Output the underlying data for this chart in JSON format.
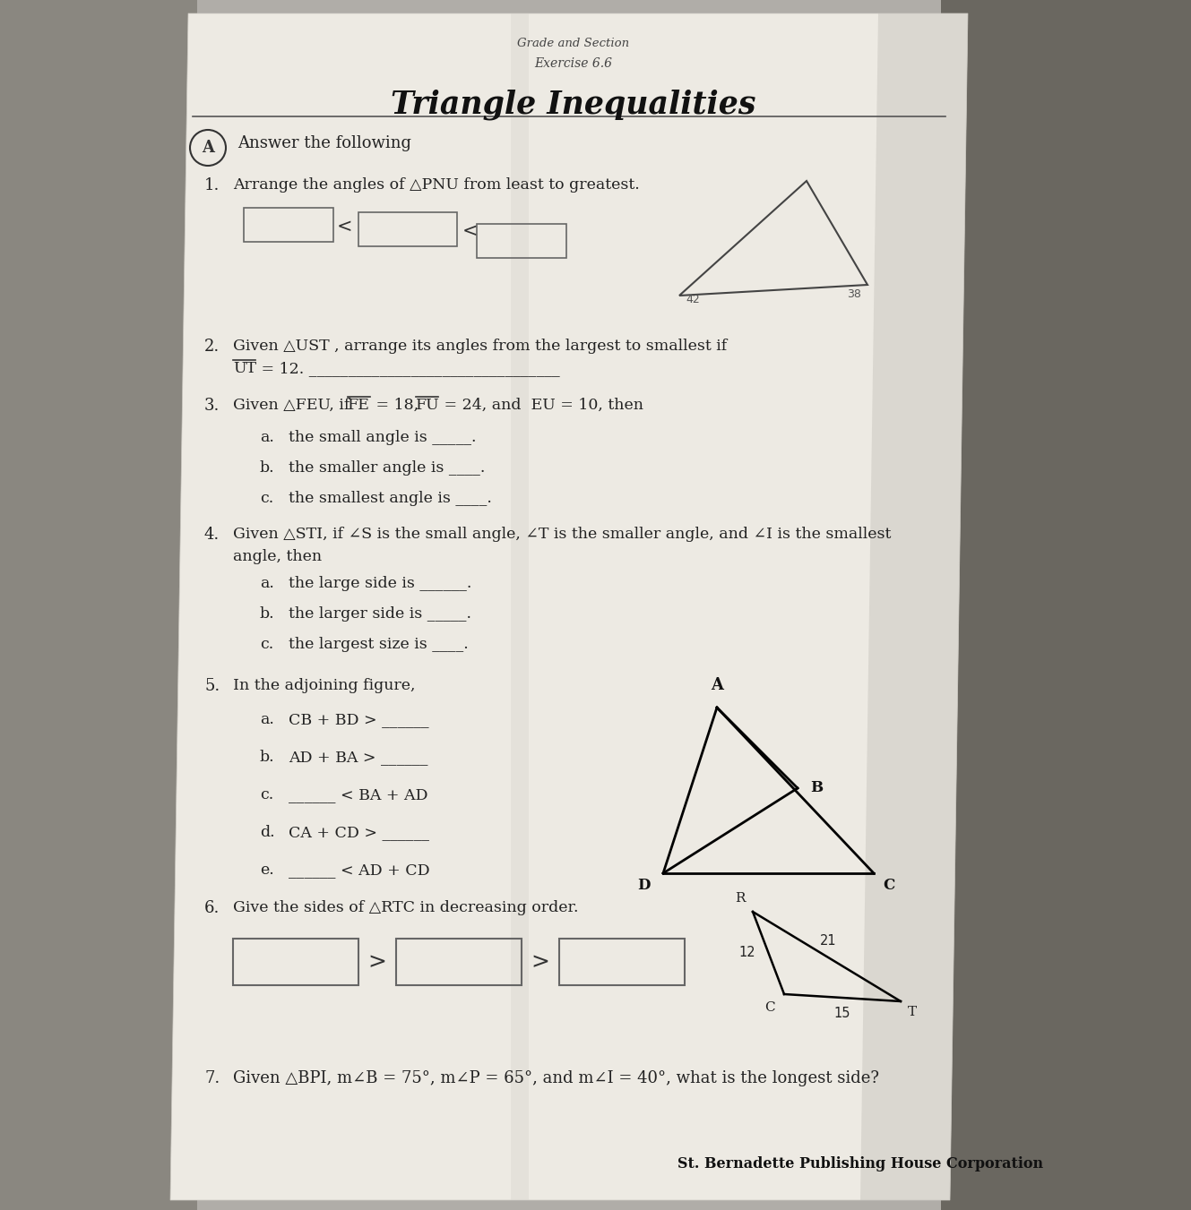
{
  "bg_color_left": "#9e9b95",
  "bg_color_right": "#8a8780",
  "paper_color": "#f0ede8",
  "paper_shadow": "#c8c5be",
  "title": "Triangle Inequalities",
  "exercise": "Exercise 6.6",
  "grade_section": "Grade and Section",
  "section_letter": "A",
  "answer_following": "Answer the following",
  "item1_text": "Arrange the angles of △PNU from least to greatest.",
  "item2_text": "Given △UST , arrange its angles from the largest to smallest if",
  "item2_text2": "UT = 12. _____________________________",
  "item3_text": "Given △FEU, if FE = 18,  FU = 24, and  EU = 10, then",
  "item3_subs": [
    "the small angle is _____.",
    "the smaller angle is ____.",
    "the smallest angle is ____."
  ],
  "item4_text": "Given △STI, if ∠S is the small angle, ∠T is the smaller angle, and ∠I is the smallest",
  "item4_text2": "angle, then",
  "item4_subs": [
    "the large side is ______.",
    "the larger side is _____.",
    "the largest size is ____."
  ],
  "item5_text": "In the adjoining figure,",
  "item5_subs": [
    "CB + BD > ______",
    "AD + BA > ______",
    "______ < BA + AD",
    "CA + CD > ______",
    "______ < AD + CD"
  ],
  "item6_text": "Give the sides of △RTC in decreasing order.",
  "item7_text": "Given △BPI, m∠B = 75°, m∠P = 65°, and m∠I = 40°, what is the longest side?",
  "publisher": "St. Bernadette Publishing House Corporation",
  "tri1_angles": [
    "42",
    "38"
  ],
  "rtc_sides": [
    "21",
    "12",
    "15"
  ],
  "rtc_labels": [
    "R",
    "C",
    "T"
  ],
  "fig5_labels": [
    "A",
    "B",
    "D",
    "C"
  ]
}
